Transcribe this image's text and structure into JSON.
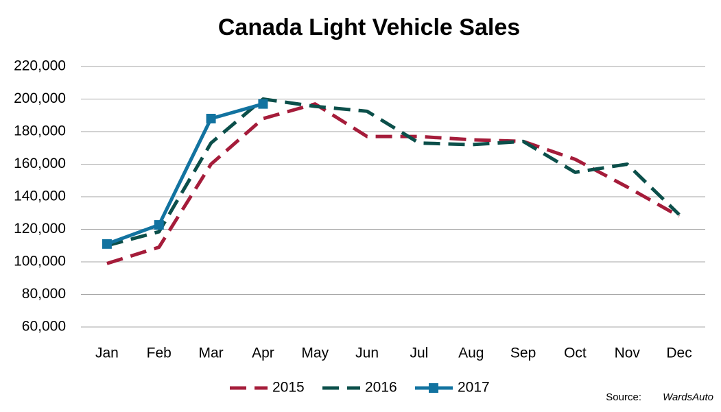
{
  "chart_data": {
    "type": "line",
    "title": "Canada Light Vehicle Sales",
    "categories": [
      "Jan",
      "Feb",
      "Mar",
      "Apr",
      "May",
      "Jun",
      "Jul",
      "Aug",
      "Sep",
      "Oct",
      "Nov",
      "Dec"
    ],
    "series": [
      {
        "name": "2015",
        "color": "#a51c3a",
        "dashed": true,
        "values": [
          99000,
          109000,
          160000,
          188000,
          197000,
          177000,
          177000,
          175000,
          174000,
          163000,
          146000,
          128000
        ]
      },
      {
        "name": "2016",
        "color": "#0b4f4a",
        "dashed": true,
        "values": [
          110000,
          118500,
          173000,
          200000,
          195500,
          192500,
          173000,
          172000,
          174000,
          155000,
          160000,
          129000
        ]
      },
      {
        "name": "2017",
        "color": "#1273a0",
        "dashed": false,
        "marker": "square",
        "values": [
          111000,
          122700,
          188000,
          197000,
          null,
          null,
          null,
          null,
          null,
          null,
          null,
          null
        ]
      }
    ],
    "ylim": [
      60000,
      220000
    ],
    "yticks": [
      {
        "value": 60000,
        "label": "60,000"
      },
      {
        "value": 80000,
        "label": "80,000"
      },
      {
        "value": 100000,
        "label": "100,000"
      },
      {
        "value": 120000,
        "label": "120,000"
      },
      {
        "value": 140000,
        "label": "140,000"
      },
      {
        "value": 160000,
        "label": "160,000"
      },
      {
        "value": 180000,
        "label": "180,000"
      },
      {
        "value": 200000,
        "label": "200,000"
      },
      {
        "value": 220000,
        "label": "220,000"
      }
    ],
    "grid": true,
    "legend": "bottom",
    "source_label": "Source:",
    "source": "WardsAuto"
  }
}
